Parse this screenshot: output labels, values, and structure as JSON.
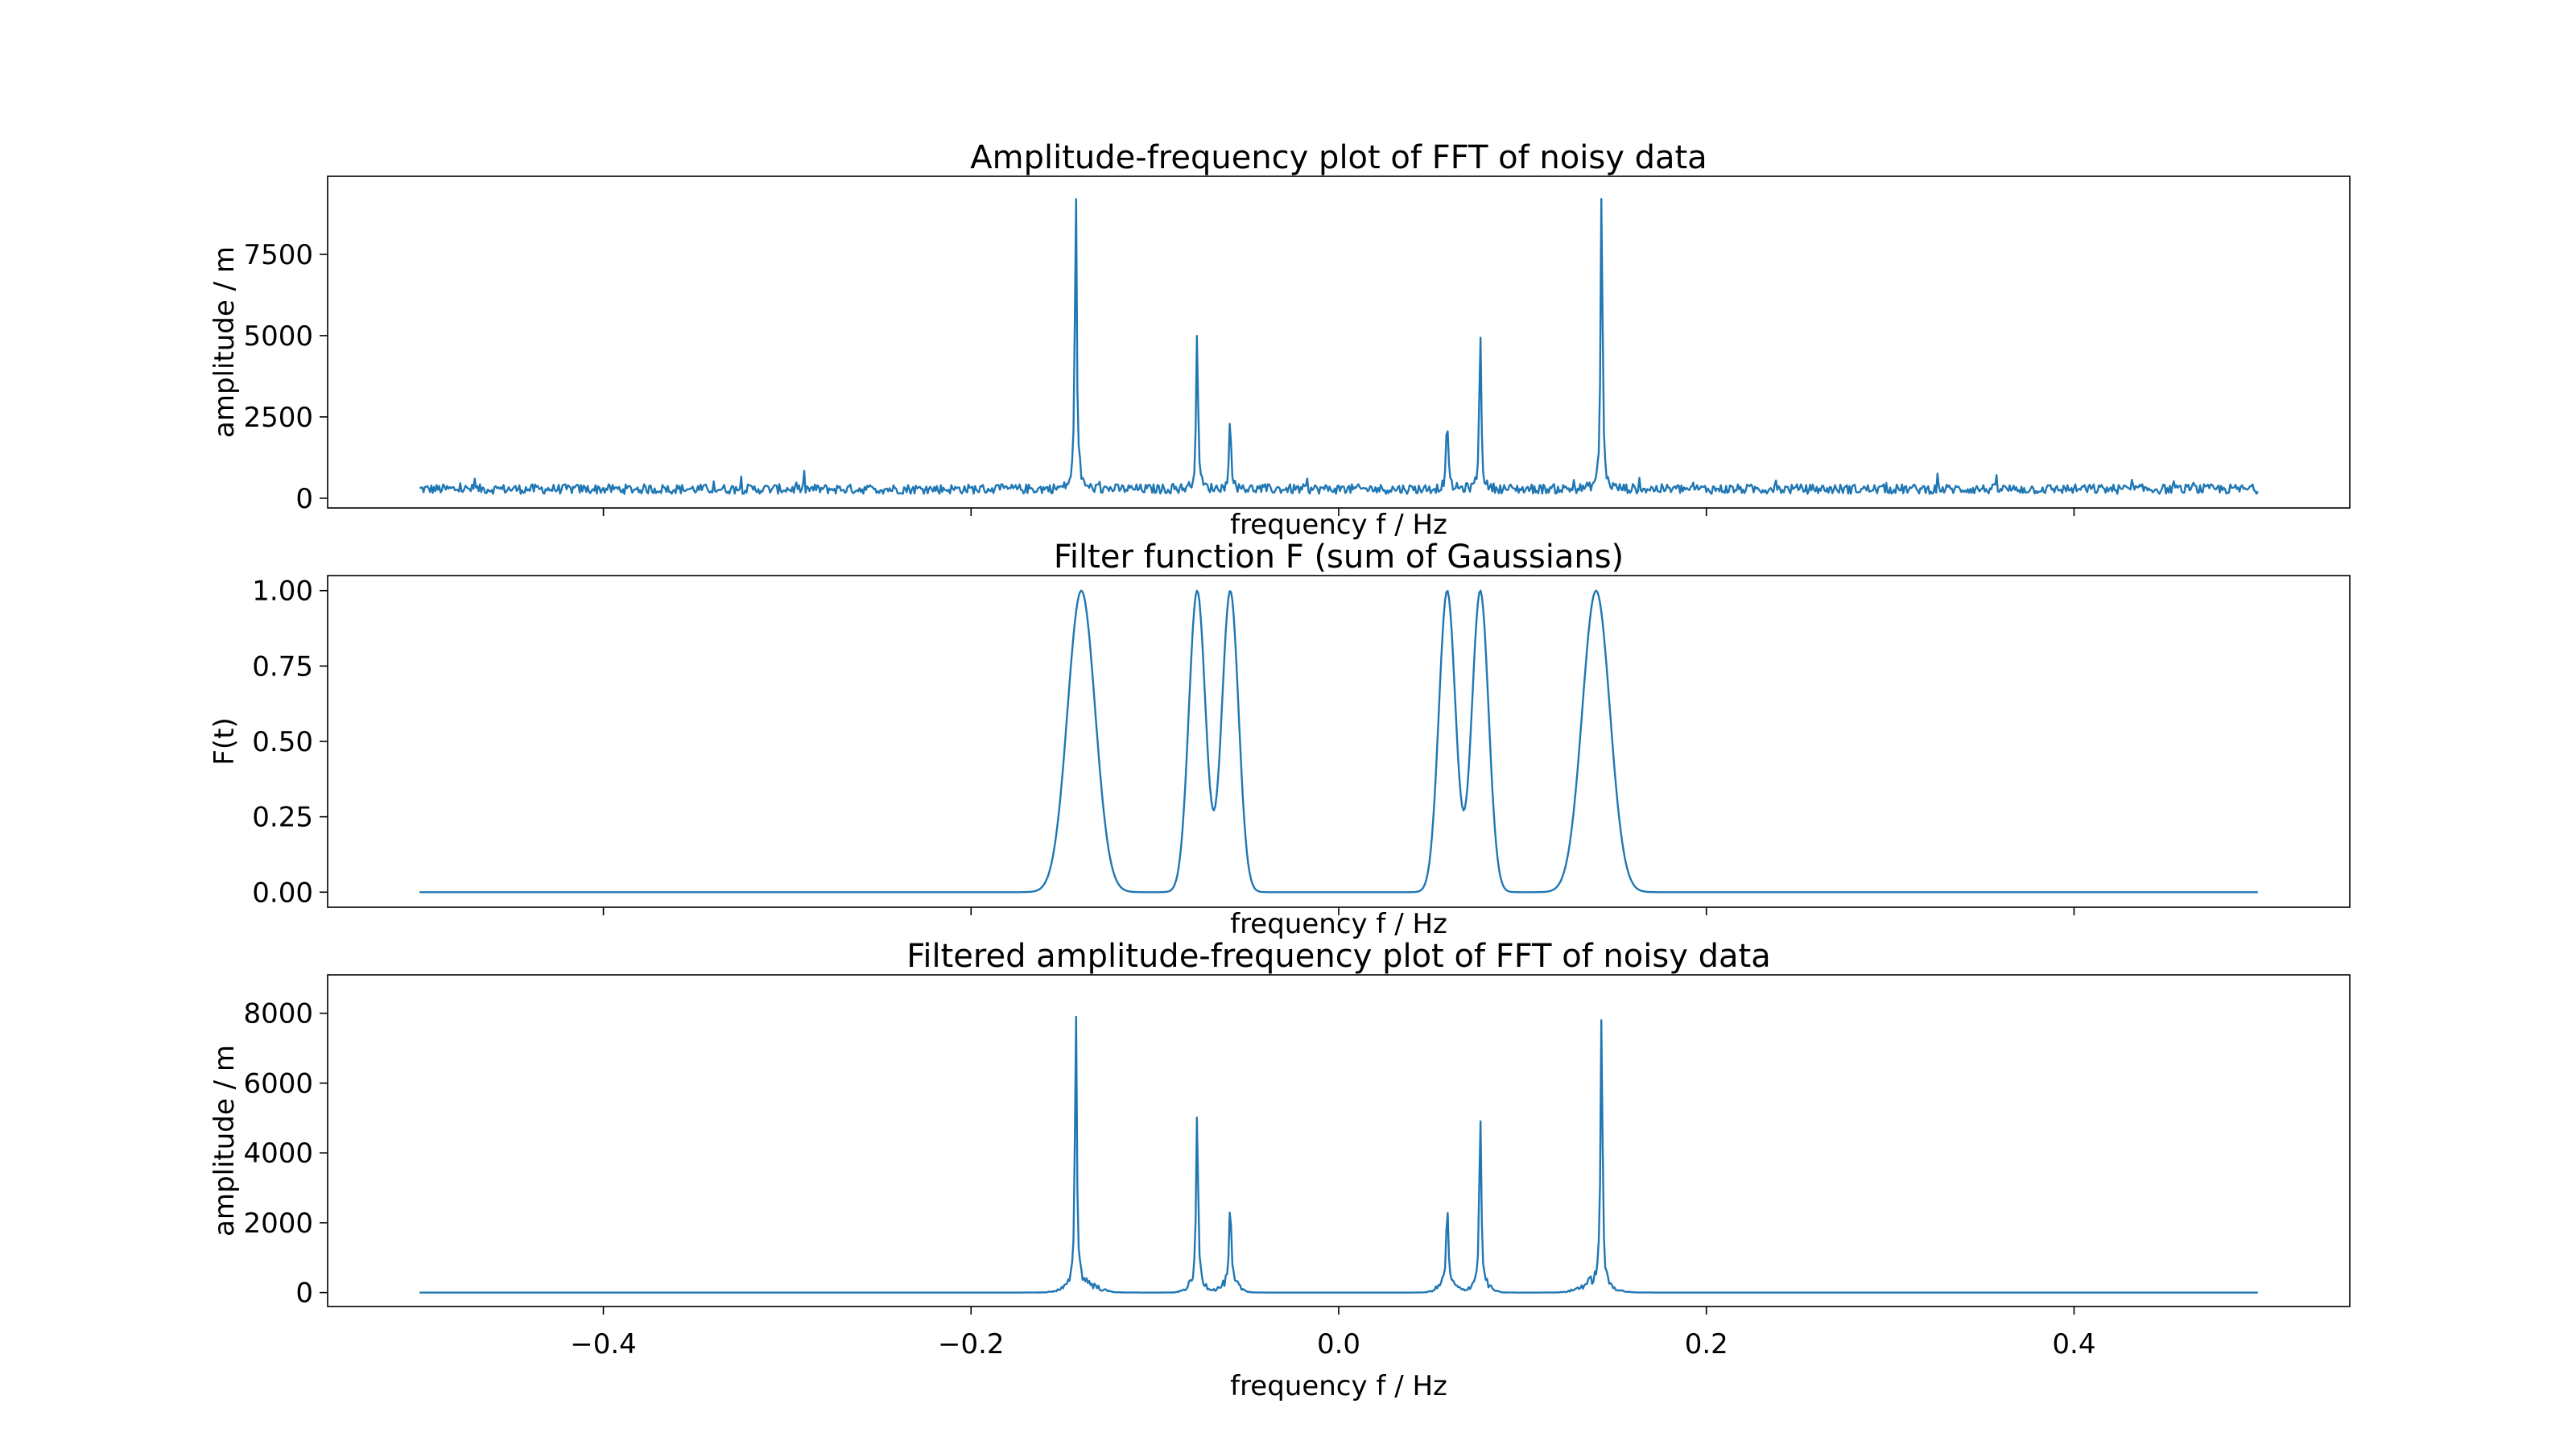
{
  "colors": {
    "series": "#1f77b4",
    "frame": "#000000",
    "background": "#ffffff"
  },
  "chart_data": [
    {
      "type": "line",
      "title": "Amplitude-frequency plot of FFT of noisy data",
      "xlabel": "frequency f / Hz",
      "ylabel": "amplitude / m",
      "xlim": [
        -0.55,
        0.55
      ],
      "ylim": [
        -300,
        9900
      ],
      "yticks": [
        0,
        2500,
        5000,
        7500
      ],
      "yticklabels": [
        "0",
        "2500",
        "5000",
        "7500"
      ],
      "xticks": [
        -0.4,
        -0.2,
        0.0,
        0.2,
        0.4
      ],
      "show_xticklabels": false,
      "grid": false,
      "noise_level": 280,
      "peaks": [
        {
          "f": -0.143,
          "amplitude": 9500
        },
        {
          "f": -0.077,
          "amplitude": 5000
        },
        {
          "f": -0.059,
          "amplitude": 2350
        },
        {
          "f": 0.059,
          "amplitude": 2350
        },
        {
          "f": 0.077,
          "amplitude": 5000
        },
        {
          "f": 0.143,
          "amplitude": 9500
        }
      ],
      "x_range": [
        -0.5,
        0.5
      ]
    },
    {
      "type": "line",
      "title": "Filter function F (sum of Gaussians)",
      "xlabel": "frequency f / Hz",
      "ylabel": "F(t)",
      "xlim": [
        -0.55,
        0.55
      ],
      "ylim": [
        -0.05,
        1.05
      ],
      "yticks": [
        0.0,
        0.25,
        0.5,
        0.75,
        1.0
      ],
      "yticklabels": [
        "0.00",
        "0.25",
        "0.50",
        "0.75",
        "1.00"
      ],
      "xticks": [
        -0.4,
        -0.2,
        0.0,
        0.2,
        0.4
      ],
      "show_xticklabels": false,
      "grid": false,
      "gaussians": [
        {
          "center": -0.14,
          "sigma": 0.0075
        },
        {
          "center": -0.077,
          "sigma": 0.0045
        },
        {
          "center": -0.059,
          "sigma": 0.0045
        },
        {
          "center": 0.059,
          "sigma": 0.0045
        },
        {
          "center": 0.077,
          "sigma": 0.0045
        },
        {
          "center": 0.14,
          "sigma": 0.0075
        }
      ],
      "x_range": [
        -0.5,
        0.5
      ]
    },
    {
      "type": "line",
      "title": "Filtered amplitude-frequency plot of FFT of noisy data",
      "xlabel": "frequency f / Hz",
      "ylabel": "amplitude / m",
      "xlim": [
        -0.55,
        0.55
      ],
      "ylim": [
        -400,
        9100
      ],
      "yticks": [
        0,
        2000,
        4000,
        6000,
        8000
      ],
      "yticklabels": [
        "0",
        "2000",
        "4000",
        "6000",
        "8000"
      ],
      "xticks": [
        -0.4,
        -0.2,
        0.0,
        0.2,
        0.4
      ],
      "xticklabels": [
        "−0.4",
        "−0.2",
        "0.0",
        "0.2",
        "0.4"
      ],
      "show_xticklabels": true,
      "grid": false,
      "peaks": [
        {
          "f": -0.143,
          "amplitude": 8600
        },
        {
          "f": -0.077,
          "amplitude": 5000
        },
        {
          "f": -0.059,
          "amplitude": 2350
        },
        {
          "f": 0.059,
          "amplitude": 2350
        },
        {
          "f": 0.077,
          "amplitude": 5000
        },
        {
          "f": 0.143,
          "amplitude": 8600
        }
      ],
      "x_range": [
        -0.5,
        0.5
      ]
    }
  ]
}
